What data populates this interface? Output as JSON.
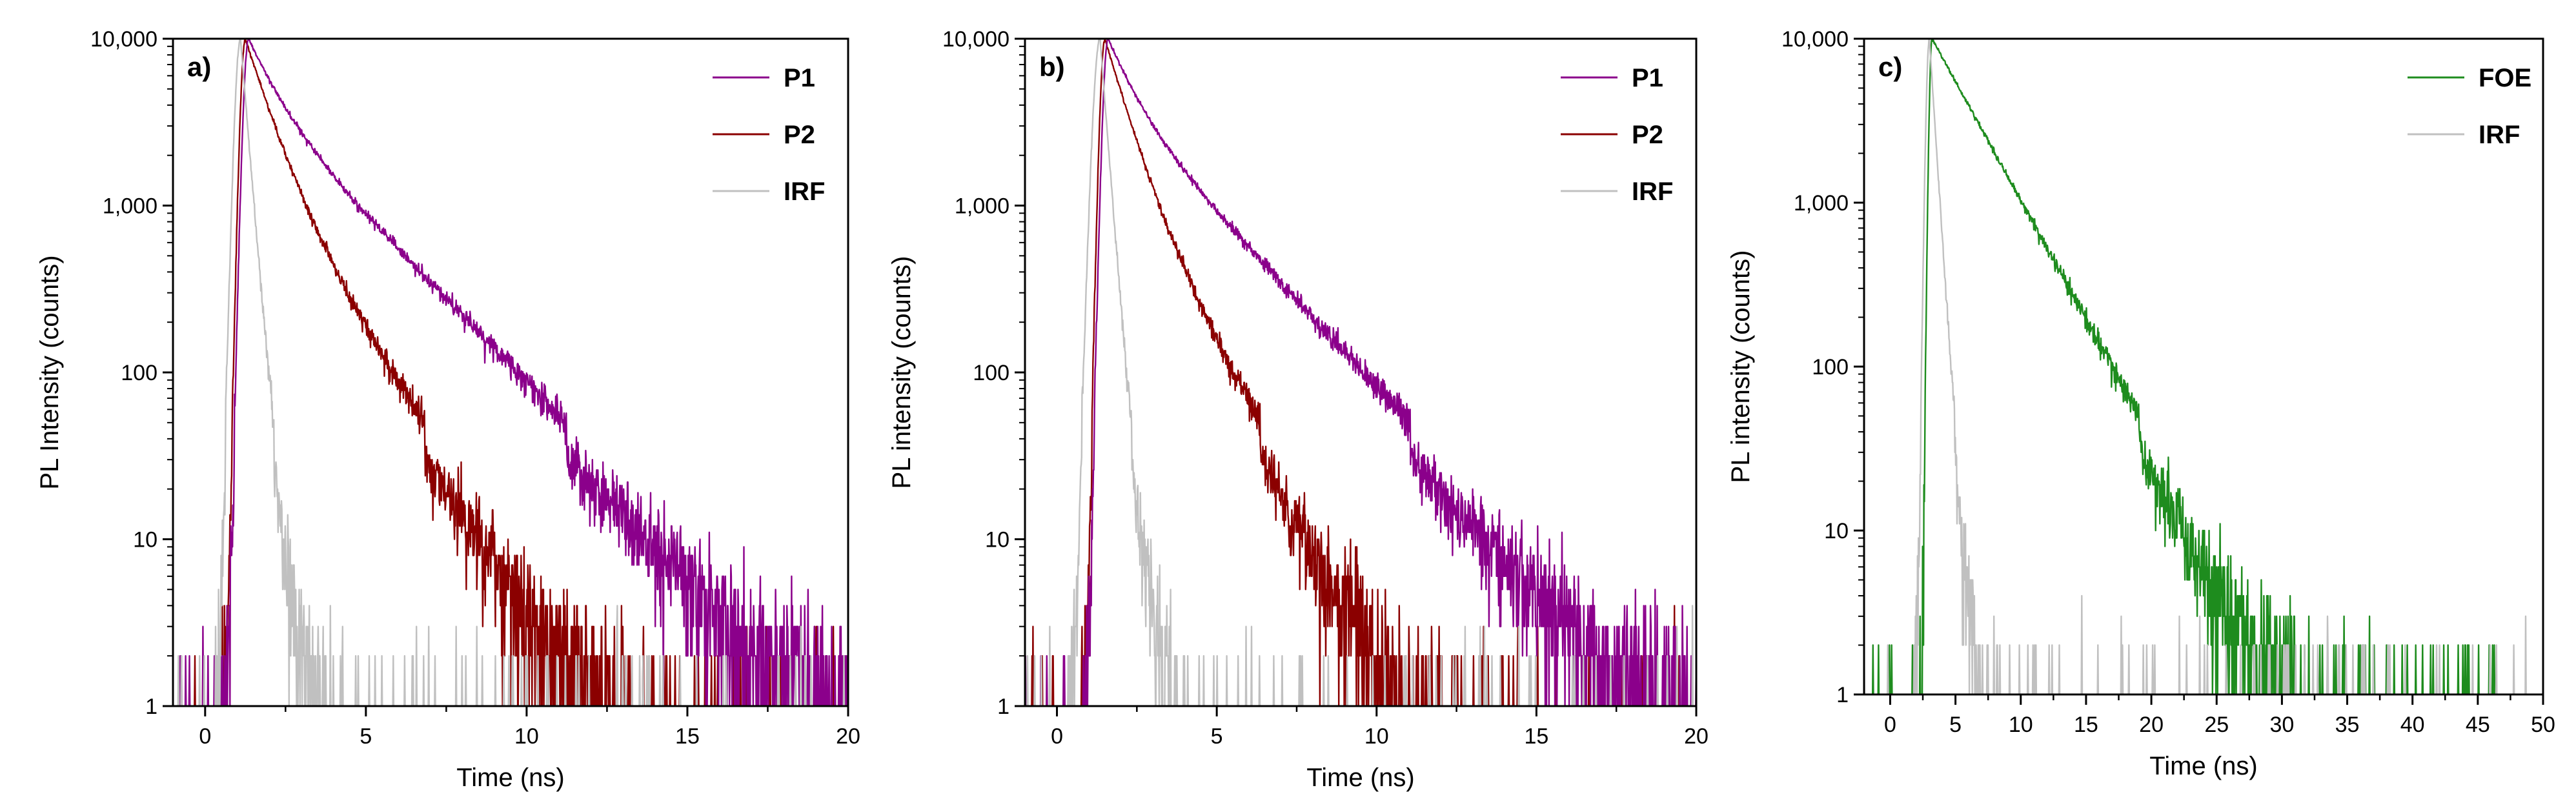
{
  "chart_data": [
    {
      "type": "line",
      "panel_label": "a)",
      "xlabel": "Time (ns)",
      "ylabel": "PL Intensity (counts)",
      "xlim": [
        -1,
        20
      ],
      "ylim": [
        1,
        10000
      ],
      "yscale": "log",
      "xticks": [
        0,
        5,
        10,
        15,
        20
      ],
      "xtick_labels": [
        "0",
        "5",
        "10",
        "15",
        "20"
      ],
      "yticks": [
        1,
        10,
        100,
        1000,
        10000
      ],
      "ytick_labels": [
        "1",
        "10",
        "100",
        "1,000",
        "10,000"
      ],
      "grid": false,
      "legend_position": "top-right",
      "series": [
        {
          "name": "P1",
          "color": "#8b008b",
          "peak_time": 1.35,
          "peak_value": 10000,
          "rise_start": 0.55,
          "components": [
            [
              0.55,
              0.75
            ],
            [
              0.45,
              2.2
            ]
          ],
          "noise_floor": 1
        },
        {
          "name": "P2",
          "color": "#8b0000",
          "peak_time": 1.25,
          "peak_value": 10000,
          "rise_start": 0.5,
          "components": [
            [
              0.8,
              0.65
            ],
            [
              0.2,
              1.5
            ]
          ],
          "noise_floor": 1
        },
        {
          "name": "IRF",
          "color": "#c0c0c0",
          "peak_time": 1.1,
          "peak_value": 10000,
          "rise_start": 0.25,
          "components": [
            [
              1.0,
              0.18
            ],
            [
              0.02,
              0.45
            ]
          ],
          "noise_floor": 1
        }
      ]
    },
    {
      "type": "line",
      "panel_label": "b)",
      "xlabel": "Time (ns)",
      "ylabel": "PL intensity (counts)",
      "xlim": [
        -1,
        20
      ],
      "ylim": [
        1,
        10000
      ],
      "yscale": "log",
      "xticks": [
        0,
        5,
        10,
        15,
        20
      ],
      "xtick_labels": [
        "0",
        "5",
        "10",
        "15",
        "20"
      ],
      "yticks": [
        1,
        10,
        100,
        1000,
        10000
      ],
      "ytick_labels": [
        "1",
        "10",
        "100",
        "1,000",
        "10,000"
      ],
      "grid": false,
      "legend_position": "top-right",
      "series": [
        {
          "name": "P1",
          "color": "#8b008b",
          "peak_time": 1.6,
          "peak_value": 10000,
          "rise_start": 0.8,
          "components": [
            [
              0.55,
              0.7
            ],
            [
              0.45,
              2.1
            ]
          ],
          "noise_floor": 1
        },
        {
          "name": "P2",
          "color": "#8b0000",
          "peak_time": 1.5,
          "peak_value": 10000,
          "rise_start": 0.75,
          "components": [
            [
              0.8,
              0.6
            ],
            [
              0.2,
              1.3
            ]
          ],
          "noise_floor": 1
        },
        {
          "name": "IRF",
          "color": "#c0c0c0",
          "peak_time": 1.35,
          "peak_value": 10000,
          "rise_start": 0.3,
          "components": [
            [
              1.0,
              0.17
            ],
            [
              0.02,
              0.45
            ]
          ],
          "noise_floor": 1
        }
      ]
    },
    {
      "type": "line",
      "panel_label": "c)",
      "xlabel": "Time (ns)",
      "ylabel": "PL intensity (counts)",
      "xlim": [
        -2,
        50
      ],
      "ylim": [
        1,
        10000
      ],
      "yscale": "log",
      "xticks": [
        0,
        5,
        10,
        15,
        20,
        25,
        30,
        35,
        40,
        45,
        50
      ],
      "xtick_labels": [
        "0",
        "5",
        "10",
        "15",
        "20",
        "25",
        "30",
        "35",
        "40",
        "45",
        "50"
      ],
      "yticks": [
        1,
        10,
        100,
        1000,
        10000
      ],
      "ytick_labels": [
        "1",
        "10",
        "100",
        "1,000",
        "10,000"
      ],
      "grid": false,
      "legend_position": "top-right",
      "series": [
        {
          "name": "FOE",
          "color": "#1e8c1e",
          "peak_time": 3.2,
          "peak_value": 10000,
          "rise_start": 2.2,
          "components": [
            [
              1.0,
              3.0
            ]
          ],
          "noise_floor": 1
        },
        {
          "name": "IRF",
          "color": "#c0c0c0",
          "peak_time": 3.0,
          "peak_value": 10000,
          "rise_start": 1.8,
          "components": [
            [
              1.0,
              0.35
            ],
            [
              0.01,
              0.9
            ]
          ],
          "noise_floor": 1
        }
      ]
    }
  ]
}
